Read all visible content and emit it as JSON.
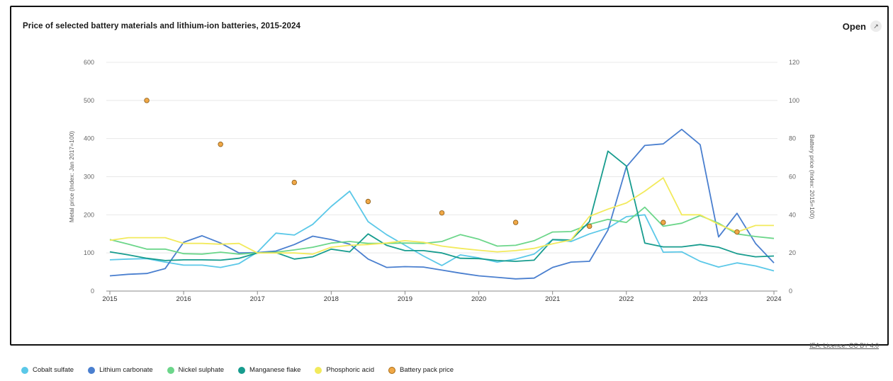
{
  "header": {
    "title": "Price of selected battery materials and lithium-ion batteries, 2015-2024",
    "open_label": "Open"
  },
  "source_link": "IEA. Licence: CC BY 4.0",
  "chart_data": {
    "type": "line",
    "title": "Price of selected battery materials and lithium-ion batteries, 2015-2024",
    "ylabel": "Metal price (Index: Jan 2017=100)",
    "y2label": "Battery price (Index: 2015=100)",
    "ylim": [
      0,
      600
    ],
    "y2lim": [
      0,
      120
    ],
    "yticks": [
      0,
      100,
      200,
      300,
      400,
      500,
      600
    ],
    "y2ticks": [
      0,
      20,
      40,
      60,
      80,
      100,
      120
    ],
    "xlim": [
      2015,
      2024
    ],
    "xticks": [
      "2015",
      "2016",
      "2017",
      "2018",
      "2019",
      "2020",
      "2021",
      "2022",
      "2023",
      "2024"
    ],
    "grid": true,
    "legend_position": "bottom",
    "x": [
      2015.0,
      2015.25,
      2015.5,
      2015.75,
      2016.0,
      2016.25,
      2016.5,
      2016.75,
      2017.0,
      2017.25,
      2017.5,
      2017.75,
      2018.0,
      2018.25,
      2018.5,
      2018.75,
      2019.0,
      2019.25,
      2019.5,
      2019.75,
      2020.0,
      2020.25,
      2020.5,
      2020.75,
      2021.0,
      2021.25,
      2021.5,
      2021.75,
      2022.0,
      2022.25,
      2022.5,
      2022.75,
      2023.0,
      2023.25,
      2023.5,
      2023.75,
      2024.0
    ],
    "series": [
      {
        "name": "Cobalt sulfate",
        "color": "#5bc8e8",
        "values": [
          82,
          84,
          85,
          76,
          68,
          68,
          62,
          72,
          102,
          152,
          147,
          175,
          222,
          262,
          182,
          148,
          120,
          92,
          67,
          95,
          87,
          76,
          84,
          97,
          135,
          130,
          150,
          165,
          195,
          200,
          102,
          103,
          78,
          63,
          74,
          66,
          53
        ]
      },
      {
        "name": "Lithium carbonate",
        "color": "#4a7fcf",
        "values": [
          40,
          44,
          46,
          59,
          128,
          145,
          126,
          100,
          101,
          105,
          122,
          144,
          135,
          123,
          84,
          62,
          64,
          63,
          55,
          47,
          40,
          36,
          32,
          34,
          62,
          76,
          78,
          160,
          326,
          382,
          386,
          424,
          384,
          142,
          204,
          125,
          74
        ]
      },
      {
        "name": "Nickel sulphate",
        "color": "#6cd68a",
        "values": [
          135,
          123,
          110,
          110,
          98,
          97,
          102,
          97,
          100,
          102,
          108,
          115,
          126,
          130,
          125,
          125,
          126,
          125,
          130,
          148,
          136,
          118,
          120,
          132,
          155,
          156,
          175,
          188,
          180,
          220,
          170,
          178,
          198,
          178,
          150,
          143,
          138
        ]
      },
      {
        "name": "Manganese flake",
        "color": "#179c8e",
        "values": [
          103,
          95,
          86,
          80,
          82,
          82,
          81,
          86,
          100,
          101,
          84,
          90,
          110,
          103,
          150,
          120,
          106,
          106,
          100,
          86,
          85,
          80,
          78,
          81,
          135,
          134,
          182,
          367,
          328,
          126,
          116,
          116,
          122,
          115,
          98,
          90,
          92
        ]
      },
      {
        "name": "Phosphoric acid",
        "color": "#f2ea5c",
        "values": [
          133,
          140,
          140,
          140,
          125,
          125,
          123,
          125,
          100,
          100,
          100,
          97,
          115,
          120,
          122,
          126,
          132,
          128,
          118,
          112,
          107,
          103,
          106,
          112,
          124,
          134,
          196,
          215,
          231,
          262,
          297,
          200,
          200,
          175,
          155,
          172,
          172
        ]
      }
    ],
    "scatter_series": {
      "name": "Battery pack price",
      "color": "#f0a847",
      "axis": "right",
      "x": [
        2015.5,
        2016.5,
        2017.5,
        2018.5,
        2019.5,
        2020.5,
        2021.5,
        2022.5,
        2023.5
      ],
      "values": [
        100,
        77,
        57,
        47,
        41,
        36,
        34,
        36,
        31
      ]
    }
  },
  "legend": [
    {
      "label": "Cobalt sulfate",
      "color": "#5bc8e8"
    },
    {
      "label": "Lithium carbonate",
      "color": "#4a7fcf"
    },
    {
      "label": "Nickel sulphate",
      "color": "#6cd68a"
    },
    {
      "label": "Manganese flake",
      "color": "#179c8e"
    },
    {
      "label": "Phosphoric acid",
      "color": "#f2ea5c"
    },
    {
      "label": "Battery pack price",
      "color": "#f0a847"
    }
  ]
}
